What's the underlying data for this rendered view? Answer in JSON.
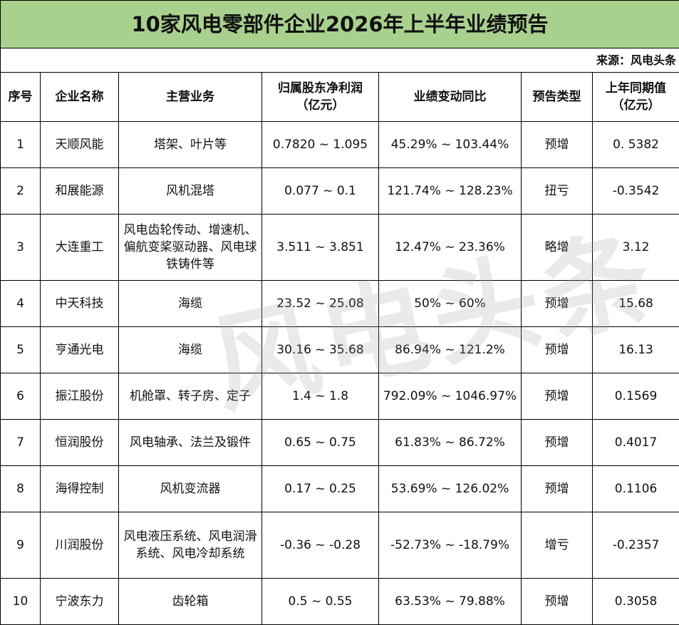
{
  "header": {
    "title": "10家风电零部件企业2026年上半年业绩预告",
    "source": "来源：风电头条"
  },
  "watermark": "风电头条",
  "table": {
    "columns": [
      "序号",
      "企业名称",
      "主营业务",
      [
        "归属股东净利润",
        "（亿元）"
      ],
      "业绩变动同比",
      "预告类型",
      [
        "上年同期值",
        "（亿元）"
      ]
    ],
    "rows": [
      [
        "1",
        "天顺风能",
        "塔架、叶片等",
        "0.7820 ~ 1.095",
        "45.29% ~ 103.44%",
        "预增",
        "0. 5382"
      ],
      [
        "2",
        "和展能源",
        "风机混塔",
        "0.077 ~ 0.1",
        "121.74% ~ 128.23%",
        "扭亏",
        "-0.3542"
      ],
      [
        "3",
        "大连重工",
        "风电齿轮传动、增速机、偏航变桨驱动器、风电球铁铸件等",
        "3.511 ~ 3.851",
        "12.47% ~ 23.36%",
        "略增",
        "3.12"
      ],
      [
        "4",
        "中天科技",
        "海缆",
        "23.52 ~ 25.08",
        "50% ~ 60%",
        "预增",
        "15.68"
      ],
      [
        "5",
        "亨通光电",
        "海缆",
        "30.16 ~ 35.68",
        "86.94% ~ 121.2%",
        "预增",
        "16.13"
      ],
      [
        "6",
        "振江股份",
        "机舱罩、转子房、定子",
        "1.4 ~ 1.8",
        "792.09% ~ 1046.97%",
        "预增",
        "0.1569"
      ],
      [
        "7",
        "恒润股份",
        "风电轴承、法兰及锻件",
        "0.65 ~ 0.75",
        "61.83% ~ 86.72%",
        "预增",
        "0.4017"
      ],
      [
        "8",
        "海得控制",
        "风机变流器",
        "0.17 ~ 0.25",
        "53.69% ~ 126.02%",
        "预增",
        "0.1106"
      ],
      [
        "9",
        "川润股份",
        "风电液压系统、风电润滑系统、风电冷却系统",
        "-0.36 ~ -0.28",
        "-52.73% ~ -18.79%",
        "增亏",
        "-0.2357"
      ],
      [
        "10",
        "宁波东力",
        "齿轮箱",
        "0.5 ~ 0.55",
        "63.53% ~ 79.88%",
        "预增",
        "0.3058"
      ]
    ]
  }
}
